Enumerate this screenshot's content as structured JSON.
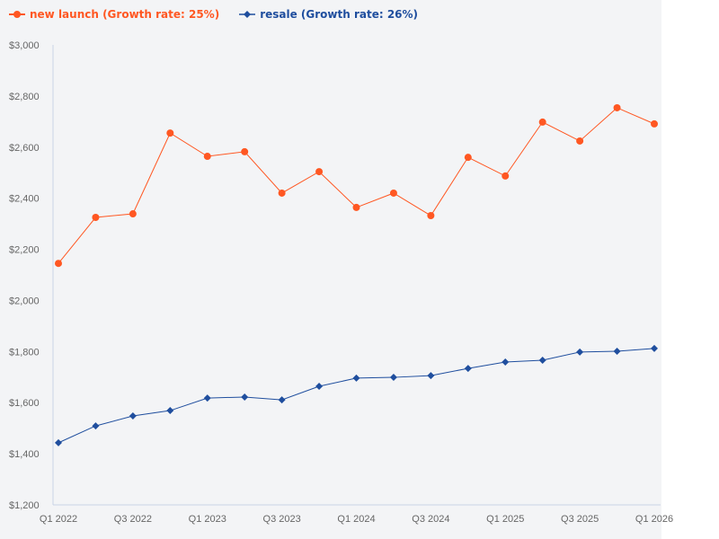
{
  "chart_data": {
    "type": "line",
    "x": [
      "Q1 2022",
      "Q2 2022",
      "Q3 2022",
      "Q4 2022",
      "Q1 2023",
      "Q2 2023",
      "Q3 2023",
      "Q4 2023",
      "Q1 2024",
      "Q2 2024",
      "Q3 2024",
      "Q4 2024",
      "Q1 2025",
      "Q2 2025",
      "Q3 2025",
      "Q4 2025",
      "Q1 2026"
    ],
    "x_tick_labels": [
      "Q1 2022",
      "Q3 2022",
      "Q1 2023",
      "Q3 2023",
      "Q1 2024",
      "Q3 2024",
      "Q1 2025",
      "Q3 2025",
      "Q1 2026"
    ],
    "y_tick_labels": [
      "$1,200",
      "$1,400",
      "$1,600",
      "$1,800",
      "$2,000",
      "$2,200",
      "$2,400",
      "$2,600",
      "$2,800",
      "$3,000"
    ],
    "ylim": [
      1200,
      3000
    ],
    "grid": false,
    "legend_position": "top-left",
    "series": [
      {
        "name": "new launch (Growth rate: 25%)",
        "color": "#ff5722",
        "marker": "circle",
        "values": [
          2145,
          2325,
          2339,
          2655,
          2564,
          2582,
          2420,
          2504,
          2364,
          2420,
          2332,
          2560,
          2487,
          2698,
          2624,
          2754,
          2691
        ]
      },
      {
        "name": "resale (Growth rate: 26%)",
        "color": "#1f4e9e",
        "marker": "diamond",
        "values": [
          1443,
          1509,
          1548,
          1569,
          1618,
          1622,
          1611,
          1664,
          1696,
          1699,
          1706,
          1734,
          1759,
          1766,
          1798,
          1801,
          1812
        ]
      }
    ]
  }
}
